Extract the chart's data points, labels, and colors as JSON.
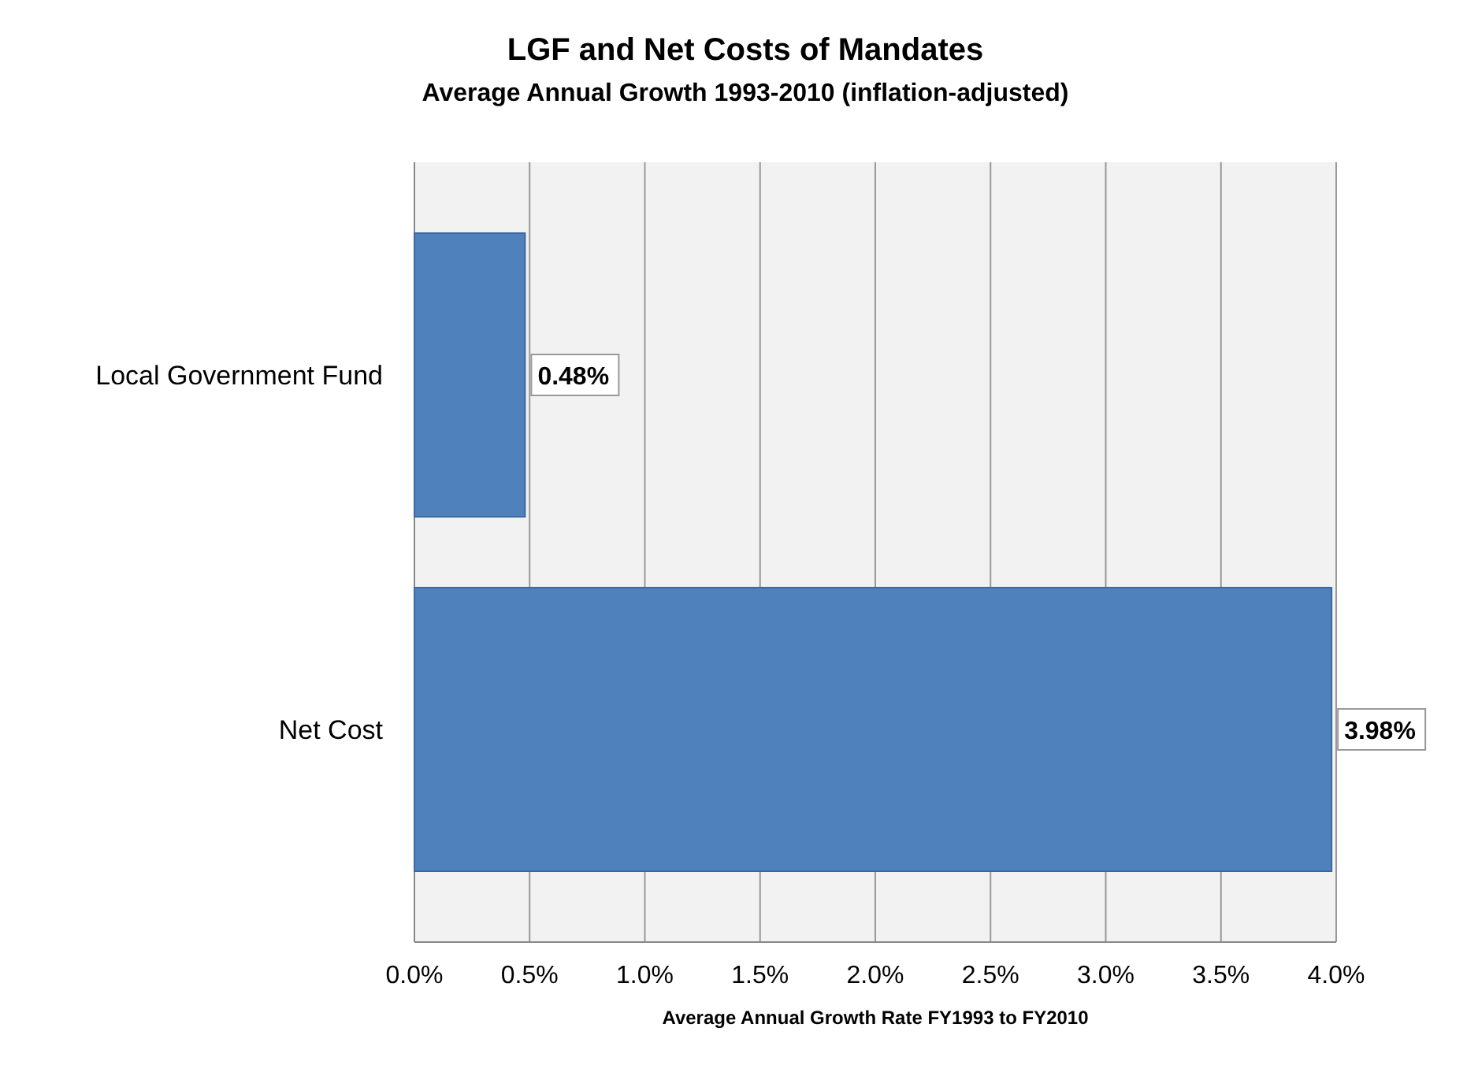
{
  "chart_data": {
    "type": "bar",
    "orientation": "horizontal",
    "title": "LGF and Net Costs of Mandates",
    "subtitle": "Average Annual Growth 1993-2010 (inflation-adjusted)",
    "xlabel": "Average Annual  Growth Rate FY1993 to FY2010",
    "categories": [
      "Local Government Fund",
      "Net Cost"
    ],
    "values": [
      0.48,
      3.98
    ],
    "value_labels": [
      "0.48%",
      "3.98%"
    ],
    "color": "#4f81bd",
    "xlim": [
      0,
      4
    ],
    "xticks": [
      {
        "value": 0,
        "label": "0.0%"
      },
      {
        "value": 0.5,
        "label": "0.5%"
      },
      {
        "value": 1,
        "label": "1.0%"
      },
      {
        "value": 1.5,
        "label": "1.5%"
      },
      {
        "value": 2,
        "label": "2.0%"
      },
      {
        "value": 2.5,
        "label": "2.5%"
      },
      {
        "value": 3,
        "label": "3.0%"
      },
      {
        "value": 3.5,
        "label": "3.5%"
      },
      {
        "value": 4,
        "label": "4.0%"
      }
    ],
    "grid": "x"
  }
}
